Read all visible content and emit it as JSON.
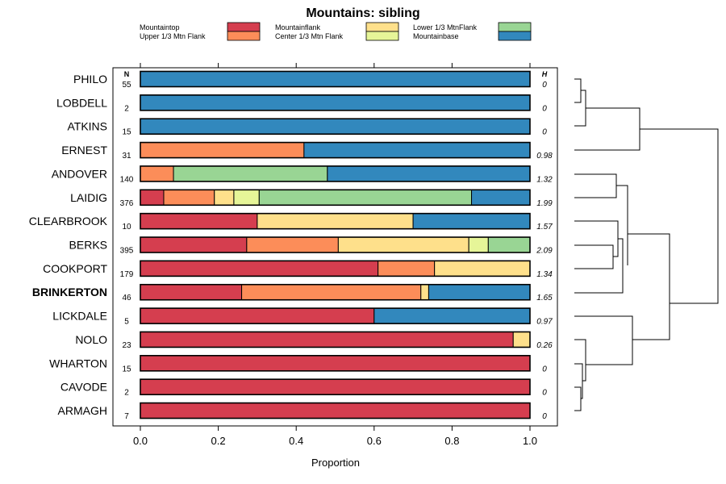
{
  "chart_data": {
    "type": "stacked-bar",
    "title": "Mountains: sibling",
    "xlabel": "Proportion",
    "xlim": [
      0,
      1
    ],
    "x_ticks": [
      "0.0",
      "0.2",
      "0.4",
      "0.6",
      "0.8",
      "1.0"
    ],
    "n_header": "N",
    "h_header": "H",
    "categories_legend": [
      {
        "name": "Mountaintop",
        "color": "#d53e4f"
      },
      {
        "name": "Upper 1/3 Mtn Flank",
        "color": "#fc8d59"
      },
      {
        "name": "Mountainflank",
        "color": "#fee08b"
      },
      {
        "name": "Center 1/3 Mtn Flank",
        "color": "#e6f598"
      },
      {
        "name": "Lower 1/3 MtnFlank",
        "color": "#99d594"
      },
      {
        "name": "Mountainbase",
        "color": "#3288bd"
      }
    ],
    "rows": [
      {
        "label": "PHILO",
        "n": "55",
        "h": "0",
        "bold": false,
        "values": [
          0,
          0,
          0,
          0,
          0,
          1.0
        ]
      },
      {
        "label": "LOBDELL",
        "n": "2",
        "h": "0",
        "bold": false,
        "values": [
          0,
          0,
          0,
          0,
          0,
          1.0
        ]
      },
      {
        "label": "ATKINS",
        "n": "15",
        "h": "0",
        "bold": false,
        "values": [
          0,
          0,
          0,
          0,
          0,
          1.0
        ]
      },
      {
        "label": "ERNEST",
        "n": "31",
        "h": "0.98",
        "bold": false,
        "values": [
          0,
          0.42,
          0,
          0,
          0,
          0.58
        ]
      },
      {
        "label": "ANDOVER",
        "n": "140",
        "h": "1.32",
        "bold": false,
        "values": [
          0,
          0.085,
          0,
          0,
          0.395,
          0.52
        ]
      },
      {
        "label": "LAIDIG",
        "n": "376",
        "h": "1.99",
        "bold": false,
        "values": [
          0.06,
          0.13,
          0.05,
          0.065,
          0.545,
          0.15
        ]
      },
      {
        "label": "CLEARBROOK",
        "n": "10",
        "h": "1.57",
        "bold": false,
        "values": [
          0.3,
          0,
          0.4,
          0,
          0,
          0.3
        ]
      },
      {
        "label": "BERKS",
        "n": "395",
        "h": "2.09",
        "bold": false,
        "values": [
          0.273,
          0.235,
          0.335,
          0.05,
          0.107,
          0
        ]
      },
      {
        "label": "COOKPORT",
        "n": "179",
        "h": "1.34",
        "bold": false,
        "values": [
          0.61,
          0.145,
          0.245,
          0,
          0,
          0
        ]
      },
      {
        "label": "BRINKERTON",
        "n": "46",
        "h": "1.65",
        "bold": true,
        "values": [
          0.26,
          0.46,
          0.02,
          0,
          0,
          0.26
        ]
      },
      {
        "label": "LICKDALE",
        "n": "5",
        "h": "0.97",
        "bold": false,
        "values": [
          0.6,
          0,
          0,
          0,
          0,
          0.4
        ]
      },
      {
        "label": "NOLO",
        "n": "23",
        "h": "0.26",
        "bold": false,
        "values": [
          0.957,
          0,
          0.043,
          0,
          0,
          0
        ]
      },
      {
        "label": "WHARTON",
        "n": "15",
        "h": "0",
        "bold": false,
        "values": [
          1.0,
          0,
          0,
          0,
          0,
          0
        ]
      },
      {
        "label": "CAVODE",
        "n": "2",
        "h": "0",
        "bold": false,
        "values": [
          1.0,
          0,
          0,
          0,
          0,
          0
        ]
      },
      {
        "label": "ARMAGH",
        "n": "7",
        "h": "0",
        "bold": false,
        "values": [
          1.0,
          0,
          0,
          0,
          0,
          0
        ]
      }
    ]
  }
}
